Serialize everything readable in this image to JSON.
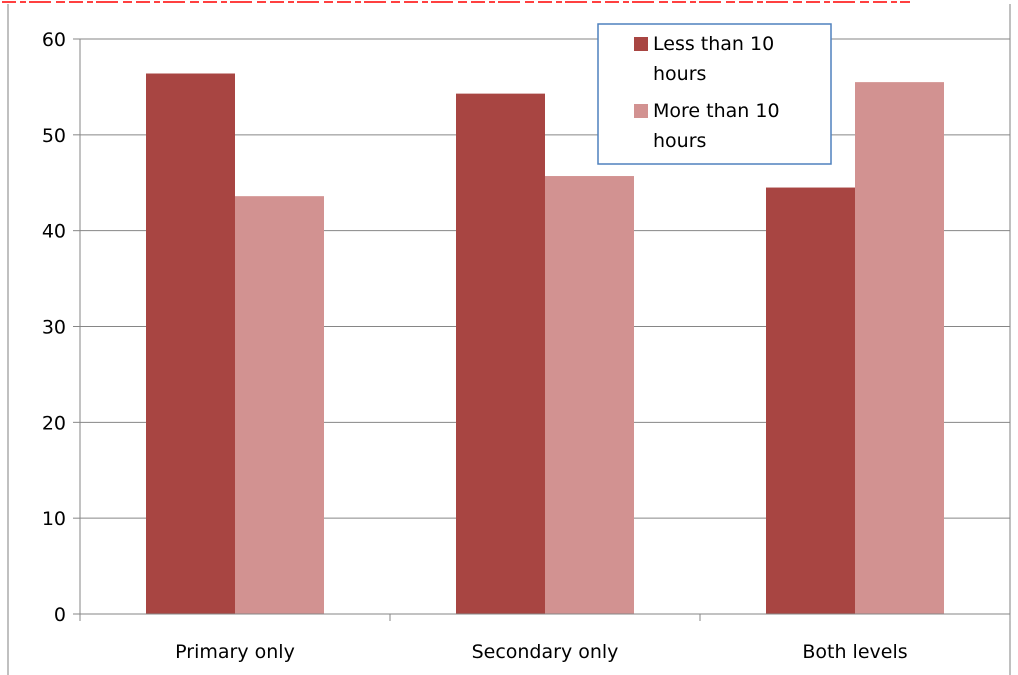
{
  "chart_data": {
    "type": "bar",
    "categories": [
      "Primary only",
      "Secondary only",
      "Both levels"
    ],
    "series": [
      {
        "name": "Less than 10 hours",
        "values": [
          56.4,
          54.3,
          44.5
        ],
        "color": "#A84542"
      },
      {
        "name": "More than 10 hours",
        "values": [
          43.6,
          45.7,
          55.5
        ],
        "color": "#D29291"
      }
    ],
    "ylim": [
      0,
      60
    ],
    "yticks": [
      0,
      10,
      20,
      30,
      40,
      50,
      60
    ],
    "grid": true,
    "legend": {
      "position": "top-right",
      "lines": [
        [
          "Less than 10",
          "hours"
        ],
        [
          "More than 10",
          "hours"
        ]
      ]
    },
    "colors": {
      "frame": "#808080",
      "grid": "#868686",
      "legend_border": "#4F81BD",
      "clipped_title": "#FF0000"
    }
  }
}
